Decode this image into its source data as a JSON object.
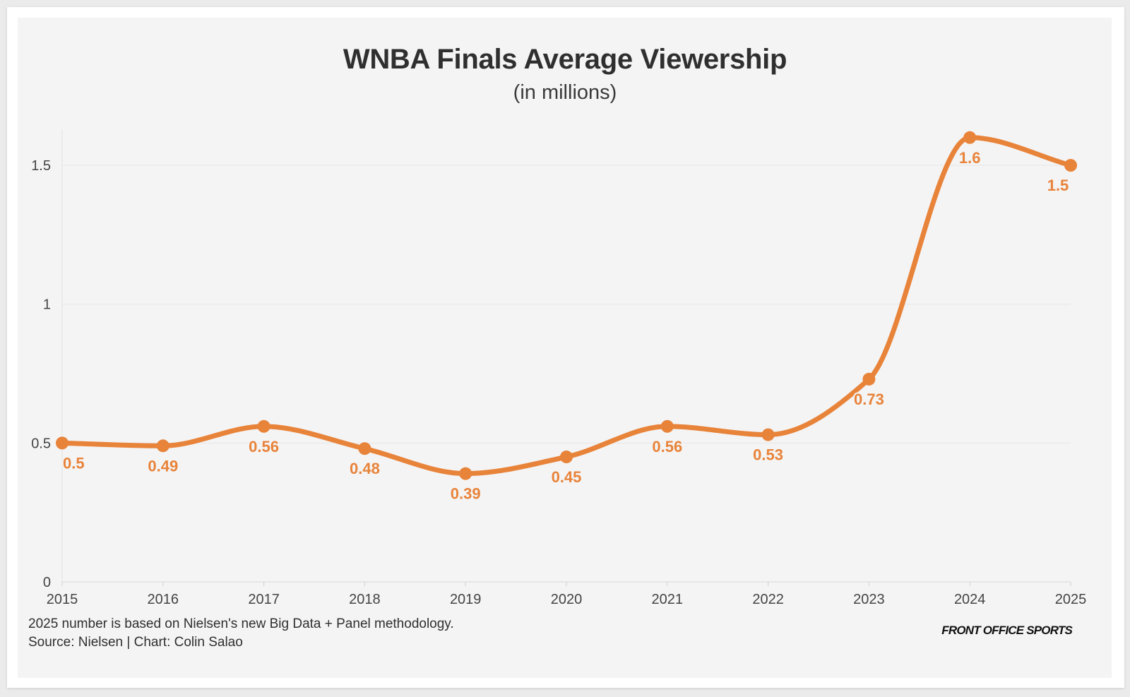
{
  "chart_data": {
    "type": "line",
    "title": "WNBA Finals Average Viewership",
    "subtitle": "(in millions)",
    "xlabel": "",
    "ylabel": "",
    "categories": [
      "2015",
      "2016",
      "2017",
      "2018",
      "2019",
      "2020",
      "2021",
      "2022",
      "2023",
      "2024",
      "2025"
    ],
    "series": [
      {
        "name": "Average Viewership",
        "values": [
          0.5,
          0.49,
          0.56,
          0.48,
          0.39,
          0.45,
          0.56,
          0.53,
          0.73,
          1.6,
          1.5
        ]
      }
    ],
    "data_labels": [
      "0.5",
      "0.49",
      "0.56",
      "0.48",
      "0.39",
      "0.45",
      "0.56",
      "0.53",
      "0.73",
      "1.6",
      "1.5"
    ],
    "ylim": [
      0,
      1.63
    ],
    "yticks": [
      0,
      0.5,
      1,
      1.5
    ],
    "ytick_labels": [
      "0",
      "0.5",
      "1",
      "1.5"
    ],
    "grid": true,
    "line_color": "#e8833a"
  },
  "footer": {
    "note": "2025 number is based on Nielsen's new Big Data + Panel methodology.",
    "source": "Source: Nielsen | Chart: Colin Salao",
    "logo": "FRONT OFFICE SPORTS"
  }
}
